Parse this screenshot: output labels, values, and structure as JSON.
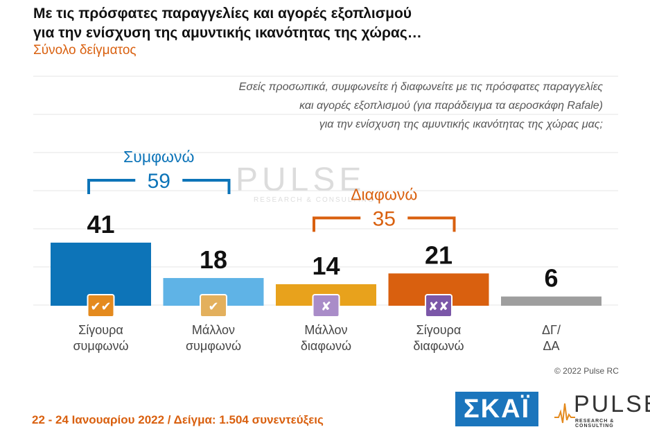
{
  "header": {
    "title_line1": "Με τις πρόσφατες παραγγελίες και αγορές εξοπλισμού",
    "title_line2": "για την ενίσχυση της αμυντικής ικανότητας της χώρας…",
    "subtitle": "Σύνολο δείγματος"
  },
  "question": {
    "line1": "Εσείς προσωπικά, συμφωνείτε ή διαφωνείτε με τις πρόσφατες παραγγελίες",
    "line2": "και αγορές εξοπλισμού (για παράδειγμα τα αεροσκάφη Rafale)",
    "line3": "για την ενίσχυση της αμυντικής ικανότητας της χώρας μας;"
  },
  "chart_data": {
    "type": "bar",
    "categories": [
      [
        "Σίγουρα",
        "συμφωνώ"
      ],
      [
        "Μάλλον",
        "συμφωνώ"
      ],
      [
        "Μάλλον",
        "διαφωνώ"
      ],
      [
        "Σίγουρα",
        "διαφωνώ"
      ],
      [
        "ΔΓ/",
        "ΔΑ"
      ]
    ],
    "values": [
      41,
      18,
      14,
      21,
      6
    ],
    "colors": [
      "#0d74b8",
      "#5fb3e6",
      "#e8a21c",
      "#d9600f",
      "#9e9e9e"
    ],
    "icons": [
      {
        "name": "double-check-icon",
        "glyph": "✔✔",
        "bg": "#e48a1e"
      },
      {
        "name": "check-icon",
        "glyph": "✔",
        "bg": "#e3b05d"
      },
      {
        "name": "cross-icon",
        "glyph": "✘",
        "bg": "#a98cc8"
      },
      {
        "name": "double-cross-icon",
        "glyph": "✘✘",
        "bg": "#7b57a8"
      },
      null
    ],
    "groups": [
      {
        "label": "Συμφωνώ",
        "total": "59",
        "color": "#0d74b8",
        "from": 0,
        "to": 1
      },
      {
        "label": "Διαφωνώ",
        "total": "35",
        "color": "#d9600f",
        "from": 2,
        "to": 3
      }
    ],
    "ylim": [
      0,
      45
    ]
  },
  "footer": {
    "date_sample": "22 - 24 Ιανουαρίου 2022 / Δείγμα: 1.504 συνεντεύξεις",
    "copyright": "© 2022 Pulse RC"
  },
  "logos": {
    "skai": "ΣΚΑΪ",
    "pulse": "PULSE",
    "pulse_sub": "RESEARCH & CONSULTING"
  }
}
